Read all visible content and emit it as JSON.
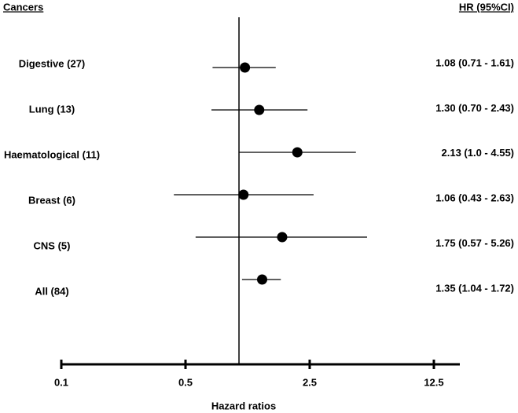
{
  "chart_data": {
    "type": "forest",
    "row_header": "Cancers",
    "value_header": "HR (95%CI)",
    "xlabel": "Hazard ratios",
    "categories": [
      "Digestive (27)",
      "Lung (13)",
      "Haematological (11)",
      "Breast (6)",
      "CNS (5)",
      "All (84)"
    ],
    "values": [
      1.08,
      1.3,
      2.13,
      1.06,
      1.75,
      1.35
    ],
    "lower": [
      0.71,
      0.7,
      1.0,
      0.43,
      0.57,
      1.04
    ],
    "upper": [
      1.61,
      2.43,
      4.55,
      2.63,
      5.26,
      1.72
    ],
    "value_labels": [
      "1.08 (0.71 - 1.61)",
      "1.30 (0.70 - 2.43)",
      "2.13 (1.0 - 4.55)",
      "1.06 (0.43 - 2.63)",
      "1.75 (0.57 - 5.26)",
      "1.35 (1.04 - 1.72)"
    ],
    "reference_line": 1,
    "xscale": "log",
    "xlim": [
      0.1,
      17.5
    ],
    "xticks": [
      0.1,
      0.5,
      2.5,
      12.5
    ],
    "color": "#000000"
  }
}
